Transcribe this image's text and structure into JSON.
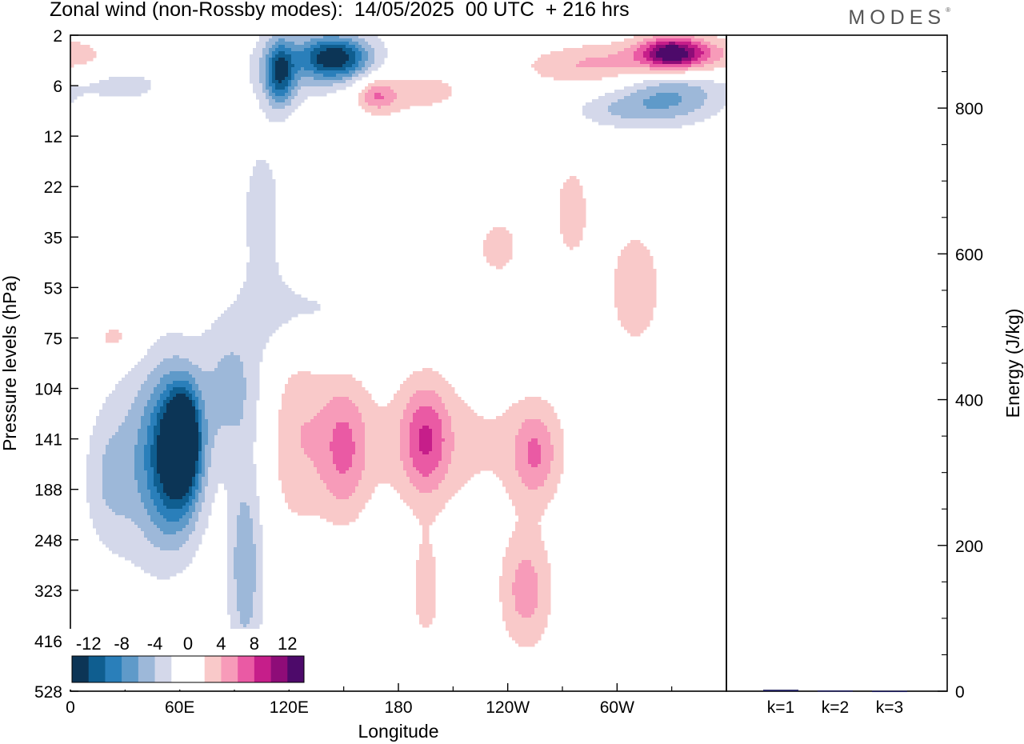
{
  "page_title": "Zonal wind (non-Rossby modes):  14/05/2025  00 UTC  + 216 hrs",
  "brand": "MODES",
  "chart_data": [
    {
      "type": "heatmap",
      "title": "Zonal wind (non-Rossby modes):  14/05/2025  00 UTC  + 216 hrs",
      "xlabel": "Longitude",
      "ylabel": "Pressure levels (hPa)",
      "x_ticks": [
        {
          "label": "0",
          "lon": 0
        },
        {
          "label": "60E",
          "lon": 60
        },
        {
          "label": "120E",
          "lon": 120
        },
        {
          "label": "180",
          "lon": 180
        },
        {
          "label": "120W",
          "lon": 240
        },
        {
          "label": "60W",
          "lon": 300
        }
      ],
      "xlim": [
        0,
        360
      ],
      "y_ticks": [
        "2",
        "6",
        "12",
        "22",
        "35",
        "53",
        "75",
        "104",
        "141",
        "188",
        "248",
        "323",
        "416",
        "528"
      ],
      "y_scale": "model-levels (top 2 hPa, bottom 528 hPa)",
      "colorbar": {
        "labels": [
          "-12",
          "-8",
          "-4",
          "0",
          "4",
          "8",
          "12"
        ],
        "bins": [
          {
            "from": -14,
            "to": -12,
            "color": "#0c3556"
          },
          {
            "from": -12,
            "to": -10,
            "color": "#0f5e90"
          },
          {
            "from": -10,
            "to": -8,
            "color": "#2a7fba"
          },
          {
            "from": -8,
            "to": -6,
            "color": "#5f9ac9"
          },
          {
            "from": -6,
            "to": -4,
            "color": "#9db8d9"
          },
          {
            "from": -4,
            "to": -2,
            "color": "#d4d8ea"
          },
          {
            "from": -2,
            "to": 0,
            "color": "#ffffff"
          },
          {
            "from": 0,
            "to": 2,
            "color": "#ffffff"
          },
          {
            "from": 2,
            "to": 4,
            "color": "#f9c9c9"
          },
          {
            "from": 4,
            "to": 6,
            "color": "#f79bb9"
          },
          {
            "from": 6,
            "to": 8,
            "color": "#ea5aa4"
          },
          {
            "from": 8,
            "to": 10,
            "color": "#c61e8a"
          },
          {
            "from": 10,
            "to": 12,
            "color": "#8e0c78"
          },
          {
            "from": 12,
            "to": 14,
            "color": "#4d0a6a"
          }
        ]
      },
      "blobs": [
        {
          "lon": 58,
          "lev": 8.3,
          "rlon": 16,
          "rlev": 1.6,
          "v": -11.5
        },
        {
          "lon": 62,
          "lev": 8.0,
          "rlon": 8,
          "rlev": 0.9,
          "v": -13.5
        },
        {
          "lon": 45,
          "lev": 8.4,
          "rlon": 26,
          "rlev": 2.4,
          "v": -5
        },
        {
          "lon": 96,
          "lev": 10.5,
          "rlon": 11,
          "rlev": 2.4,
          "v": -5.5
        },
        {
          "lon": 88,
          "lev": 7.0,
          "rlon": 20,
          "rlev": 1.5,
          "v": -4.5
        },
        {
          "lon": 125,
          "lev": 5.5,
          "rlon": 35,
          "rlev": 1.0,
          "v": -3
        },
        {
          "lon": 105,
          "lev": 3.5,
          "rlon": 14,
          "rlev": 1.8,
          "v": -3
        },
        {
          "lon": 20,
          "lev": 8.8,
          "rlon": 15,
          "rlev": 1.5,
          "v": -3
        },
        {
          "lon": 145,
          "lev": 0.45,
          "rlon": 20,
          "rlev": 0.45,
          "v": -11
        },
        {
          "lon": 115,
          "lev": 0.75,
          "rlon": 9,
          "rlev": 0.7,
          "v": -10
        },
        {
          "lon": 135,
          "lev": 0.6,
          "rlon": 45,
          "rlev": 0.9,
          "v": -4
        },
        {
          "lon": 30,
          "lev": 1.0,
          "rlon": 25,
          "rlev": 0.35,
          "v": -3
        },
        {
          "lon": 330,
          "lev": 1.2,
          "rlon": 32,
          "rlev": 0.6,
          "v": -6
        },
        {
          "lon": 300,
          "lev": 1.5,
          "rlon": 30,
          "rlev": 0.4,
          "v": -3
        },
        {
          "lon": 285,
          "lev": 0.6,
          "rlon": 40,
          "rlev": 0.45,
          "v": 4
        },
        {
          "lon": 330,
          "lev": 0.35,
          "rlon": 18,
          "rlev": 0.35,
          "v": 10
        },
        {
          "lon": 340,
          "lev": 0.4,
          "rlon": 40,
          "rlev": 0.4,
          "v": 5
        },
        {
          "lon": 185,
          "lev": 1.1,
          "rlon": 45,
          "rlev": 0.6,
          "v": 3
        },
        {
          "lon": 168,
          "lev": 1.2,
          "rlon": 12,
          "rlev": 0.35,
          "v": 5
        },
        {
          "lon": 150,
          "lev": 8.2,
          "rlon": 14,
          "rlev": 1.5,
          "v": 5
        },
        {
          "lon": 195,
          "lev": 8.0,
          "rlon": 14,
          "rlev": 1.2,
          "v": 6
        },
        {
          "lon": 255,
          "lev": 8.3,
          "rlon": 14,
          "rlev": 1.0,
          "v": 5
        },
        {
          "lon": 200,
          "lev": 8.1,
          "rlon": 80,
          "rlev": 1.5,
          "v": 2.6
        },
        {
          "lon": 125,
          "lev": 7.8,
          "rlon": 18,
          "rlev": 2.4,
          "v": 3
        },
        {
          "lon": 250,
          "lev": 11.0,
          "rlon": 16,
          "rlev": 1.3,
          "v": 5
        },
        {
          "lon": 195,
          "lev": 11.0,
          "rlon": 10,
          "rlev": 1.3,
          "v": 3
        },
        {
          "lon": 310,
          "lev": 5.0,
          "rlon": 20,
          "rlev": 1.6,
          "v": 3
        },
        {
          "lon": 275,
          "lev": 3.5,
          "rlon": 12,
          "rlev": 1.2,
          "v": 3
        },
        {
          "lon": 235,
          "lev": 4.2,
          "rlon": 14,
          "rlev": 0.7,
          "v": 3
        },
        {
          "lon": 25,
          "lev": 6.0,
          "rlon": 15,
          "rlev": 0.5,
          "v": 3
        },
        {
          "lon": 90,
          "lev": 13.4,
          "rlon": 6,
          "rlev": 0.6,
          "v": 3
        }
      ],
      "energy_panel": {
        "ylabel": "Energy (J/kg)",
        "y_ticks": [
          "0",
          "200",
          "400",
          "600",
          "800"
        ],
        "ylim": [
          0,
          900
        ],
        "categories": [
          "k=1",
          "k=2",
          "k=3"
        ],
        "values": [
          2,
          1,
          0.5
        ]
      }
    }
  ]
}
